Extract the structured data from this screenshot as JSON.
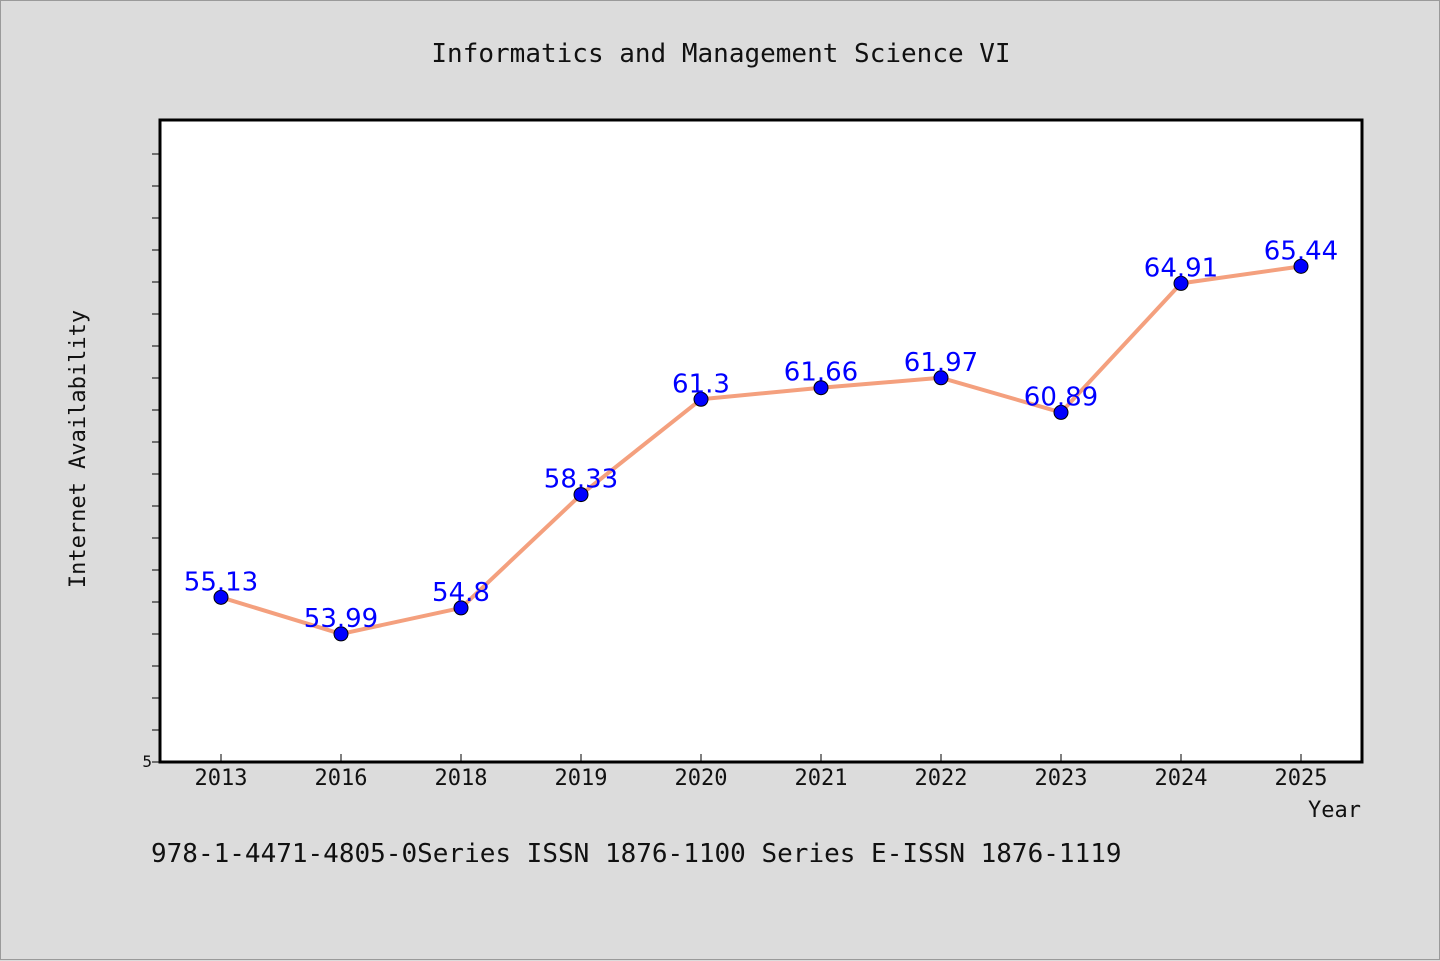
{
  "chart_data": {
    "type": "line",
    "title": "Informatics and Management Science VI",
    "xlabel": "Year",
    "ylabel": "Internet Availability",
    "categories": [
      "2013",
      "2016",
      "2018",
      "2019",
      "2020",
      "2021",
      "2022",
      "2023",
      "2024",
      "2025"
    ],
    "values": [
      55.13,
      53.99,
      54.8,
      58.33,
      61.3,
      61.66,
      61.97,
      60.89,
      64.91,
      65.44
    ],
    "data_labels": [
      "55.13",
      "53.99",
      "54.8",
      "58.33",
      "61.3",
      "61.66",
      "61.97",
      "60.89",
      "64.91",
      "65.44"
    ],
    "y_tick_labels": [
      "5"
    ],
    "ylim": [
      50,
      70
    ],
    "grid": false,
    "legend": "none",
    "line_color": "#f4a07e",
    "marker_color": "#0000ff"
  },
  "footer": {
    "text": "978-1-4471-4805-0Series ISSN 1876-1100 Series E-ISSN 1876-1119"
  },
  "colors": {
    "background": "#dcdcdc",
    "plot_background": "#ffffff",
    "data_label": "#0000ff"
  }
}
